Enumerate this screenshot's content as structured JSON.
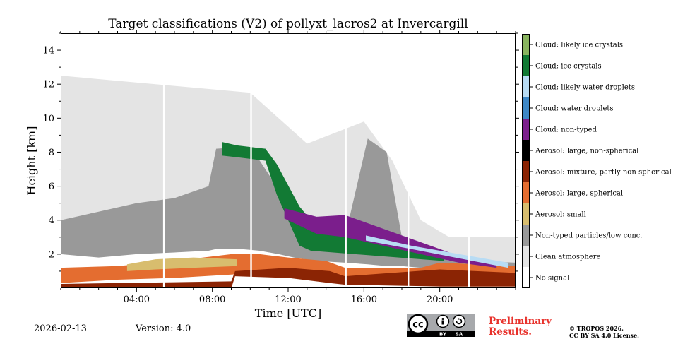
{
  "chart_data": {
    "type": "heatmap",
    "title": "Target classifications (V2) of pollyxt_lacros2 at Invercargill",
    "xlabel": "Time [UTC]",
    "ylabel": "Height [km]",
    "xlim_hours": [
      0,
      24
    ],
    "ylim_km": [
      0,
      15
    ],
    "x_ticks": [
      {
        "hour": 4,
        "label": "04:00"
      },
      {
        "hour": 8,
        "label": "08:00"
      },
      {
        "hour": 12,
        "label": "12:00"
      },
      {
        "hour": 16,
        "label": "16:00"
      },
      {
        "hour": 20,
        "label": "20:00"
      }
    ],
    "y_ticks": [
      {
        "value": 2,
        "label": "2"
      },
      {
        "value": 4,
        "label": "4"
      },
      {
        "value": 6,
        "label": "6"
      },
      {
        "value": 8,
        "label": "8"
      },
      {
        "value": 10,
        "label": "10"
      },
      {
        "value": 12,
        "label": "12"
      },
      {
        "value": 14,
        "label": "14"
      }
    ],
    "classes": [
      {
        "id": 11,
        "label": "Cloud: likely ice crystals",
        "color": "#89b45f"
      },
      {
        "id": 10,
        "label": "Cloud: ice crystals",
        "color": "#127a34"
      },
      {
        "id": 9,
        "label": "Cloud: likely water droplets",
        "color": "#b8dcf4"
      },
      {
        "id": 8,
        "label": "Cloud: water droplets",
        "color": "#3e88c7"
      },
      {
        "id": 7,
        "label": "Cloud: non-typed",
        "color": "#7b1e8c"
      },
      {
        "id": 6,
        "label": "Aerosol: large, non-spherical",
        "color": "#000000"
      },
      {
        "id": 5,
        "label": "Aerosol: mixture, partly non-spherical",
        "color": "#8b2404"
      },
      {
        "id": 4,
        "label": "Aerosol: large, spherical",
        "color": "#e46d30"
      },
      {
        "id": 3,
        "label": "Aerosol: small",
        "color": "#d8bd6e"
      },
      {
        "id": 2,
        "label": "Non-typed particles/low conc.",
        "color": "#999999"
      },
      {
        "id": 1,
        "label": "Clean atmosphere",
        "color": "#e4e4e4"
      },
      {
        "id": 0,
        "label": "No signal",
        "color": "#ffffff"
      }
    ],
    "layers": [
      {
        "class": 1,
        "segments": [
          [
            0,
            2.5,
            12.5
          ],
          [
            10,
            2.3,
            11.5
          ],
          [
            13,
            3.2,
            8.5
          ],
          [
            16,
            3.0,
            9.8
          ],
          [
            17.5,
            3.0,
            7.5
          ],
          [
            19,
            1.8,
            4.0
          ],
          [
            20.5,
            1.6,
            3.0
          ],
          [
            22,
            1.5,
            3.0
          ],
          [
            24,
            1.4,
            3.0
          ]
        ]
      },
      {
        "class": 2,
        "segments": [
          [
            0,
            2.0,
            4.0
          ],
          [
            2,
            1.8,
            4.5
          ],
          [
            4,
            2.0,
            5.0
          ],
          [
            6,
            2.1,
            5.3
          ],
          [
            7.8,
            2.2,
            6.0
          ],
          [
            8.2,
            2.3,
            8.2
          ],
          [
            9.5,
            2.3,
            8.3
          ],
          [
            10.5,
            2.2,
            7.5
          ],
          [
            11.5,
            2.0,
            5.8
          ],
          [
            12.3,
            1.8,
            4.6
          ],
          [
            13.5,
            1.6,
            4.0
          ],
          [
            15,
            1.5,
            3.0
          ],
          [
            16.2,
            1.4,
            8.8
          ],
          [
            17.2,
            1.3,
            8.0
          ],
          [
            18,
            1.3,
            3.0
          ],
          [
            19,
            1.2,
            2.3
          ],
          [
            20.5,
            1.1,
            1.6
          ],
          [
            22,
            1.1,
            1.6
          ],
          [
            24,
            1.1,
            1.5
          ]
        ]
      },
      {
        "class": 4,
        "segments": [
          [
            0,
            0.3,
            1.2
          ],
          [
            3,
            0.5,
            1.3
          ],
          [
            6,
            0.6,
            1.6
          ],
          [
            9,
            0.8,
            2.0
          ],
          [
            10.5,
            0.9,
            2.0
          ],
          [
            12,
            0.8,
            1.8
          ],
          [
            14,
            0.8,
            1.6
          ],
          [
            15,
            0.2,
            1.2
          ],
          [
            19,
            0.3,
            1.2
          ],
          [
            20,
            0.1,
            1.5
          ],
          [
            24,
            0.1,
            1.3
          ]
        ]
      },
      {
        "class": 5,
        "segments": [
          [
            0,
            0,
            0.25
          ],
          [
            9,
            0,
            0.4
          ],
          [
            9.2,
            0.7,
            1.0
          ],
          [
            12,
            0.6,
            1.2
          ],
          [
            14.2,
            0.3,
            1.0
          ],
          [
            15,
            0.2,
            0.7
          ],
          [
            20,
            0.1,
            1.1
          ],
          [
            24,
            0.1,
            0.9
          ]
        ]
      },
      {
        "class": 3,
        "segments": [
          [
            3.5,
            1.0,
            1.4
          ],
          [
            5,
            1.1,
            1.7
          ],
          [
            7,
            1.2,
            1.8
          ],
          [
            9.3,
            1.3,
            1.7
          ]
        ]
      },
      {
        "class": 10,
        "segments": [
          [
            8.5,
            7.8,
            8.6
          ],
          [
            9.3,
            7.7,
            8.4
          ],
          [
            10.8,
            7.5,
            8.2
          ],
          [
            11.4,
            5.5,
            7.3
          ],
          [
            12.6,
            2.5,
            4.8
          ],
          [
            13.2,
            2.2,
            4.0
          ],
          [
            20.2,
            1.6,
            1.9
          ]
        ]
      },
      {
        "class": 7,
        "segments": [
          [
            11.8,
            4.1,
            4.7
          ],
          [
            13.5,
            3.2,
            4.2
          ],
          [
            15,
            3.0,
            4.3
          ],
          [
            21,
            1.5,
            1.9
          ],
          [
            23,
            1.2,
            1.5
          ]
        ]
      },
      {
        "class": 9,
        "segments": [
          [
            16.1,
            2.8,
            3.1
          ],
          [
            18.5,
            2.3,
            2.5
          ],
          [
            23.6,
            1.2,
            1.5
          ]
        ]
      }
    ],
    "gaps_hours": [
      5.4,
      10.0,
      15.0,
      18.3,
      21.5
    ]
  },
  "footer": {
    "date": "2026-02-13",
    "version": "Version: 4.0",
    "preliminary_line1": "Preliminary",
    "preliminary_line2": "Results.",
    "copyright_line1": "© TROPOS 2026.",
    "copyright_line2": "CC BY SA 4.0 License.",
    "cc_badge": {
      "cc": "cc",
      "by": "BY",
      "sa": "SA"
    }
  }
}
